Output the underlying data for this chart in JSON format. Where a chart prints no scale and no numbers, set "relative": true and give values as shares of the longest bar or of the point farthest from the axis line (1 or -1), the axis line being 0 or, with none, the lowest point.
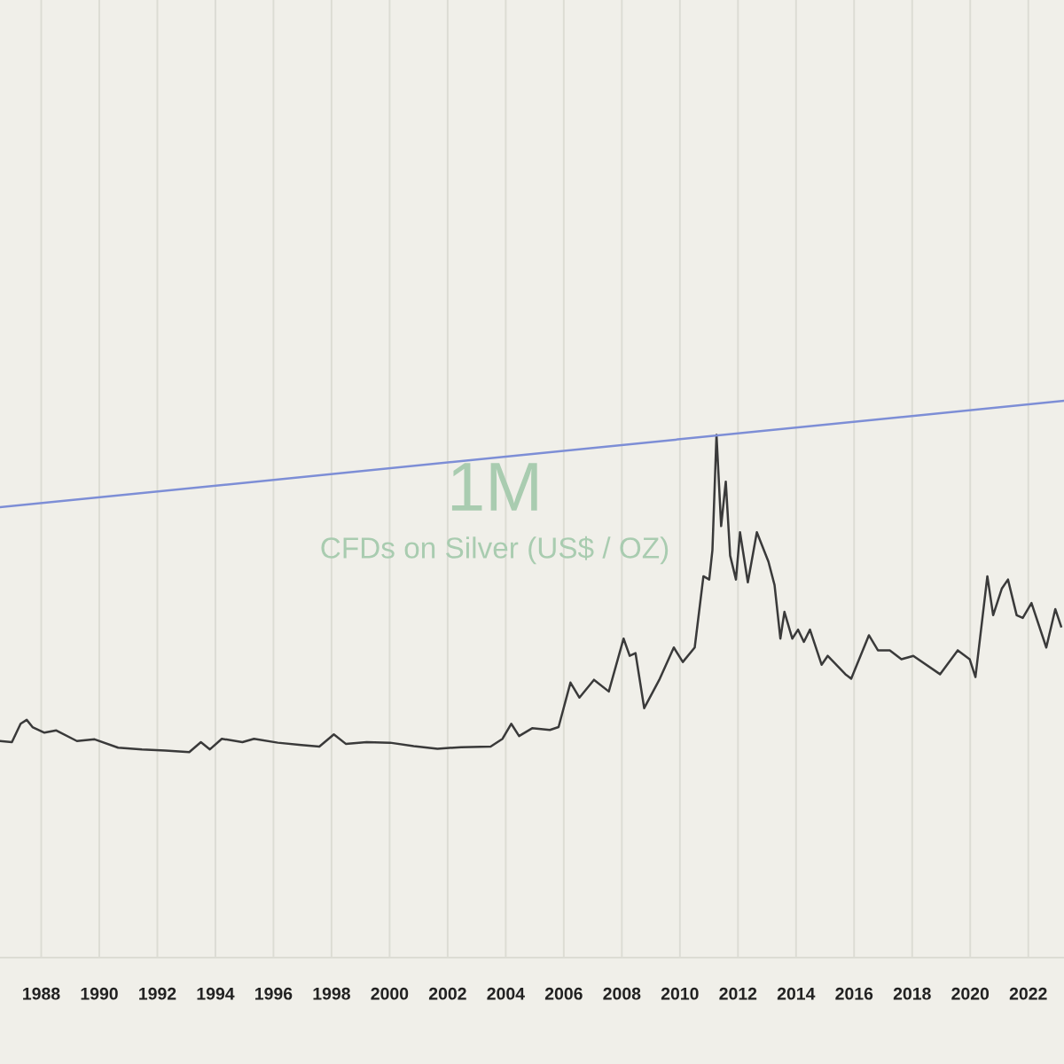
{
  "chart_data": {
    "type": "line",
    "title": "1M",
    "subtitle": "CFDs on Silver (US$ / OZ)",
    "relative": true,
    "grid": "x",
    "legend": false,
    "marker": "none",
    "line_style": "solid",
    "xlim": [
      1986.58,
      2023.23
    ],
    "xticks": [
      1988,
      1990,
      1992,
      1994,
      1996,
      1998,
      2000,
      2002,
      2004,
      2006,
      2008,
      2010,
      2012,
      2014,
      2016,
      2018,
      2020,
      2022
    ],
    "series": [
      {
        "color": "#3a3a3a",
        "x": [
          1986.58,
          1986.99,
          1987.29,
          1987.5,
          1987.7,
          1988.11,
          1988.52,
          1989.23,
          1989.84,
          1990.65,
          1991.47,
          1992.28,
          1993.1,
          1993.5,
          1993.81,
          1994.22,
          1994.93,
          1995.33,
          1996.15,
          1996.96,
          1997.58,
          1998.08,
          1998.49,
          1999.21,
          2000.02,
          2000.83,
          2001.65,
          2002.46,
          2003.48,
          2003.89,
          2004.19,
          2004.46,
          2004.91,
          2005.52,
          2005.82,
          2006.23,
          2006.54,
          2007.04,
          2007.55,
          2008.06,
          2008.27,
          2008.47,
          2008.77,
          2009.29,
          2009.79,
          2010.1,
          2010.51,
          2010.81,
          2011.01,
          2011.12,
          2011.26,
          2011.42,
          2011.58,
          2011.73,
          2011.93,
          2012.07,
          2012.34,
          2012.65,
          2013.05,
          2013.26,
          2013.46,
          2013.6,
          2013.87,
          2014.07,
          2014.27,
          2014.48,
          2014.88,
          2015.09,
          2015.7,
          2015.9,
          2016.51,
          2016.82,
          2017.23,
          2017.63,
          2018.04,
          2018.96,
          2019.57,
          2019.98,
          2020.18,
          2020.59,
          2020.79,
          2021.09,
          2021.3,
          2021.6,
          2021.81,
          2022.11,
          2022.62,
          2022.93,
          2023.13
        ],
        "values": [
          0.389,
          0.387,
          0.42,
          0.427,
          0.414,
          0.404,
          0.408,
          0.389,
          0.392,
          0.377,
          0.374,
          0.372,
          0.369,
          0.387,
          0.374,
          0.393,
          0.387,
          0.393,
          0.386,
          0.382,
          0.379,
          0.401,
          0.384,
          0.387,
          0.386,
          0.38,
          0.375,
          0.378,
          0.379,
          0.393,
          0.42,
          0.398,
          0.412,
          0.409,
          0.414,
          0.494,
          0.467,
          0.499,
          0.478,
          0.573,
          0.542,
          0.547,
          0.448,
          0.499,
          0.557,
          0.531,
          0.557,
          0.685,
          0.679,
          0.732,
          0.939,
          0.775,
          0.855,
          0.722,
          0.679,
          0.764,
          0.674,
          0.764,
          0.711,
          0.669,
          0.573,
          0.621,
          0.573,
          0.589,
          0.567,
          0.589,
          0.526,
          0.542,
          0.509,
          0.501,
          0.579,
          0.552,
          0.552,
          0.536,
          0.542,
          0.509,
          0.552,
          0.536,
          0.504,
          0.685,
          0.615,
          0.663,
          0.679,
          0.615,
          0.61,
          0.637,
          0.557,
          0.626,
          0.595
        ]
      },
      {
        "color": "#7d8ed6",
        "x": [
          1986.58,
          2023.23
        ],
        "values": [
          0.809,
          1
        ]
      }
    ]
  }
}
